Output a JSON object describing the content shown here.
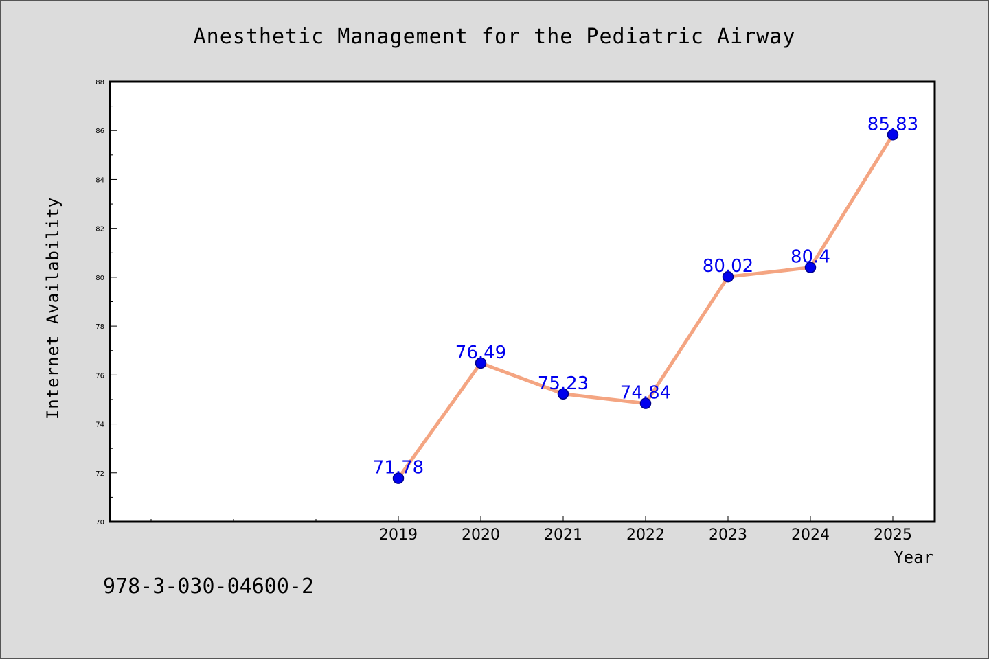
{
  "chart_data": {
    "type": "line",
    "title": "Anesthetic Management for the Pediatric Airway",
    "xlabel": "Year",
    "ylabel": "Internet Availability",
    "x": [
      "2019",
      "2020",
      "2021",
      "2022",
      "2023",
      "2024",
      "2025"
    ],
    "x_ticks": [
      "2019",
      "2020",
      "2021",
      "2022",
      "2023",
      "2024",
      "2025"
    ],
    "x_range_slots": 10,
    "values": [
      71.78,
      76.49,
      75.23,
      74.84,
      80.02,
      80.4,
      85.83
    ],
    "data_labels": [
      "71.78",
      "76.49",
      "75.23",
      "74.84",
      "80.02",
      "80.4",
      "85.83"
    ],
    "ylim": [
      70,
      88
    ],
    "y_ticks": [
      70,
      72,
      74,
      76,
      78,
      80,
      82,
      84,
      86,
      88
    ],
    "grid": false,
    "legend": "none",
    "colors": {
      "line": "#f4a582",
      "marker": "#0000ee",
      "marker_edge": "#00008b",
      "label": "#0000ee",
      "background": "#dcdcdc",
      "plot_background": "#ffffff"
    }
  },
  "annotation": {
    "text": "978-3-030-04600-2"
  }
}
